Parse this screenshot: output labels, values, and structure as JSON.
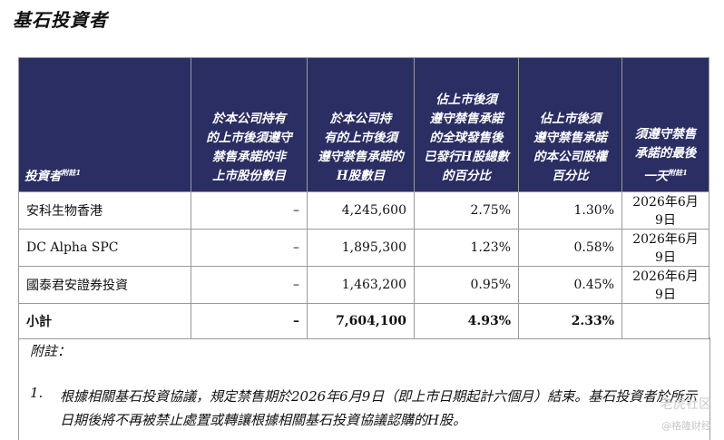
{
  "title": "基石投資者",
  "headers": {
    "investor": "投資者",
    "investor_note": "附註1",
    "col1": [
      "於本公司持有",
      "的上市後須遵守",
      "禁售承諾的非",
      "上市股份數目"
    ],
    "col2": [
      "於本公司持",
      "有的上市後須",
      "遵守禁售承諾的",
      "H股數目"
    ],
    "col3": [
      "佔上市後須",
      "遵守禁售承諾",
      "的全球發售後",
      "已發行H股總數",
      "的百分比"
    ],
    "col4": [
      "佔上市後須",
      "遵守禁售承諾",
      "的本公司股權",
      "百分比"
    ],
    "col5": [
      "須遵守禁售",
      "承諾的最後",
      "一天"
    ],
    "col5_note": "附註1"
  },
  "rows": [
    {
      "name": "安科生物香港",
      "unlisted": "–",
      "h_shares": "4,245,600",
      "pct_h": "2.75%",
      "pct_equity": "1.30%",
      "last_day": "2026年6月9日"
    },
    {
      "name": "DC Alpha SPC",
      "unlisted": "–",
      "h_shares": "1,895,300",
      "pct_h": "1.23%",
      "pct_equity": "0.58%",
      "last_day": "2026年6月9日"
    },
    {
      "name": "國泰君安證券投資",
      "unlisted": "–",
      "h_shares": "1,463,200",
      "pct_h": "0.95%",
      "pct_equity": "0.45%",
      "last_day": "2026年6月9日"
    }
  ],
  "total": {
    "name": "小計",
    "unlisted": "–",
    "h_shares": "7,604,100",
    "pct_h": "4.93%",
    "pct_equity": "2.33%",
    "last_day": ""
  },
  "notes": {
    "title": "附註：",
    "items": [
      {
        "num": "1.",
        "text": "根據相關基石投資協議，規定禁售期於2026年6月9日（即上市日期起計六個月）結束。基石投資者於所示日期後將不再被禁止處置或轉讓根據相關基石投資協議認購的H股。"
      }
    ]
  },
  "watermark": {
    "line1": "老虎社区",
    "line2": "@格隆财经"
  }
}
